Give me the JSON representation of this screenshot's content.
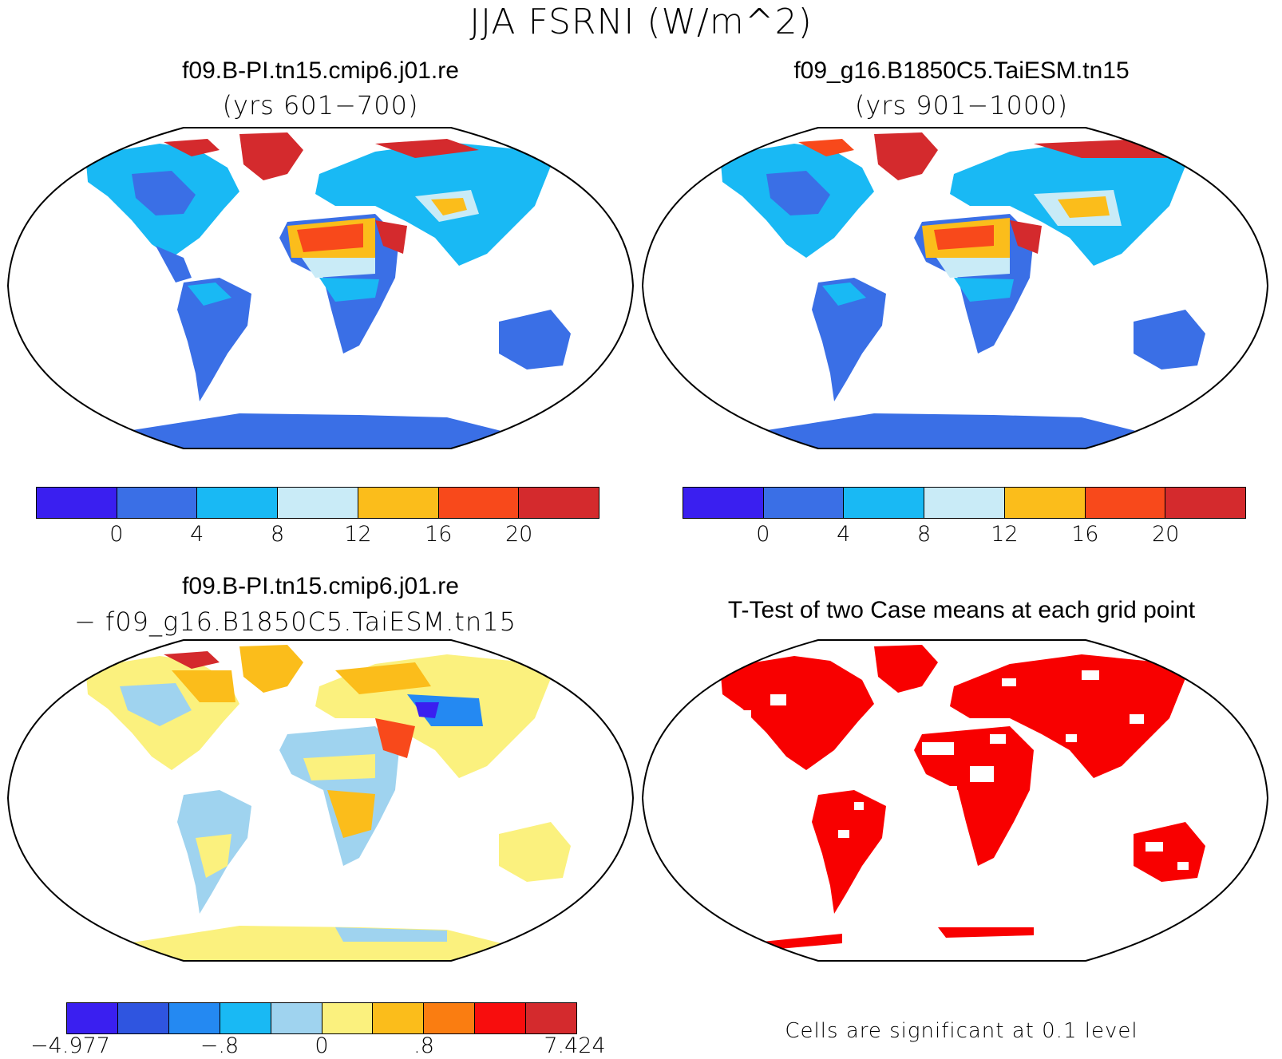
{
  "figure": {
    "main_title": "JJA FSRNI (W/m^2)"
  },
  "panels": [
    {
      "case": "f09.B-PI.tn15.cmip6.j01.re",
      "years": "(yrs 601−700)",
      "colorbar": {
        "colors": [
          "#3a1ff0",
          "#3a6fe6",
          "#19b9f4",
          "#c9ebf7",
          "#fbbd1b",
          "#f8491b",
          "#d42a2d"
        ],
        "ticks": [
          "0",
          "4",
          "8",
          "12",
          "16",
          "20"
        ]
      }
    },
    {
      "case": "f09_g16.B1850C5.TaiESM.tn15",
      "years": "(yrs 901−1000)",
      "colorbar": {
        "colors": [
          "#3a1ff0",
          "#3a6fe6",
          "#19b9f4",
          "#c9ebf7",
          "#fbbd1b",
          "#f8491b",
          "#d42a2d"
        ],
        "ticks": [
          "0",
          "4",
          "8",
          "12",
          "16",
          "20"
        ]
      }
    },
    {
      "case": "f09.B-PI.tn15.cmip6.j01.re",
      "minus_case": "− f09_g16.B1850C5.TaiESM.tn15",
      "colorbar": {
        "colors": [
          "#3a1ff0",
          "#2f55e0",
          "#2489f2",
          "#19b9f4",
          "#9fd3ef",
          "#fbf17e",
          "#fbbd1b",
          "#fa7d11",
          "#f80d0d",
          "#d42a2d"
        ],
        "ticks": [
          "−4.977",
          "−.8",
          "0",
          ".8",
          "7.424"
        ]
      }
    },
    {
      "title": "T-Test of two Case means at each grid point",
      "note": "Cells are significant at 0.1 level",
      "signif_color": "#f80000"
    }
  ]
}
